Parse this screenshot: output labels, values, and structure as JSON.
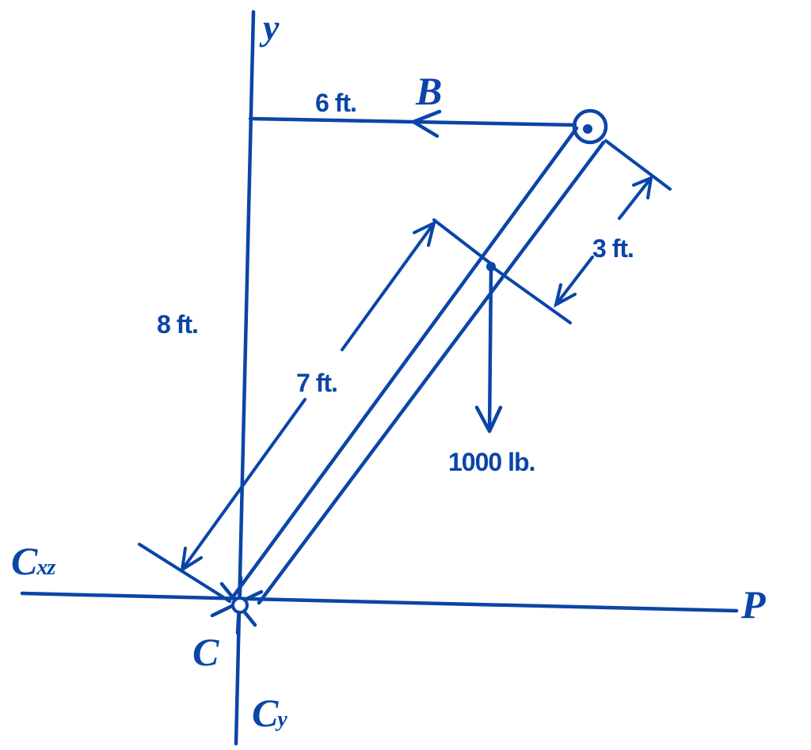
{
  "labels": {
    "y_axis": "y",
    "point_b": "B",
    "point_c": "C",
    "c_x": "C",
    "c_x_sub": "xz",
    "c_y": "C",
    "c_y_sub": "y",
    "force_p": "P",
    "dim_6ft": "6 ft.",
    "dim_3ft": "3 ft.",
    "dim_7ft": "7 ft.",
    "dim_8ft": "8 ft.",
    "load": "1000 lb."
  },
  "colors": {
    "ink": "#0a45a8",
    "background": "#ffffff"
  }
}
